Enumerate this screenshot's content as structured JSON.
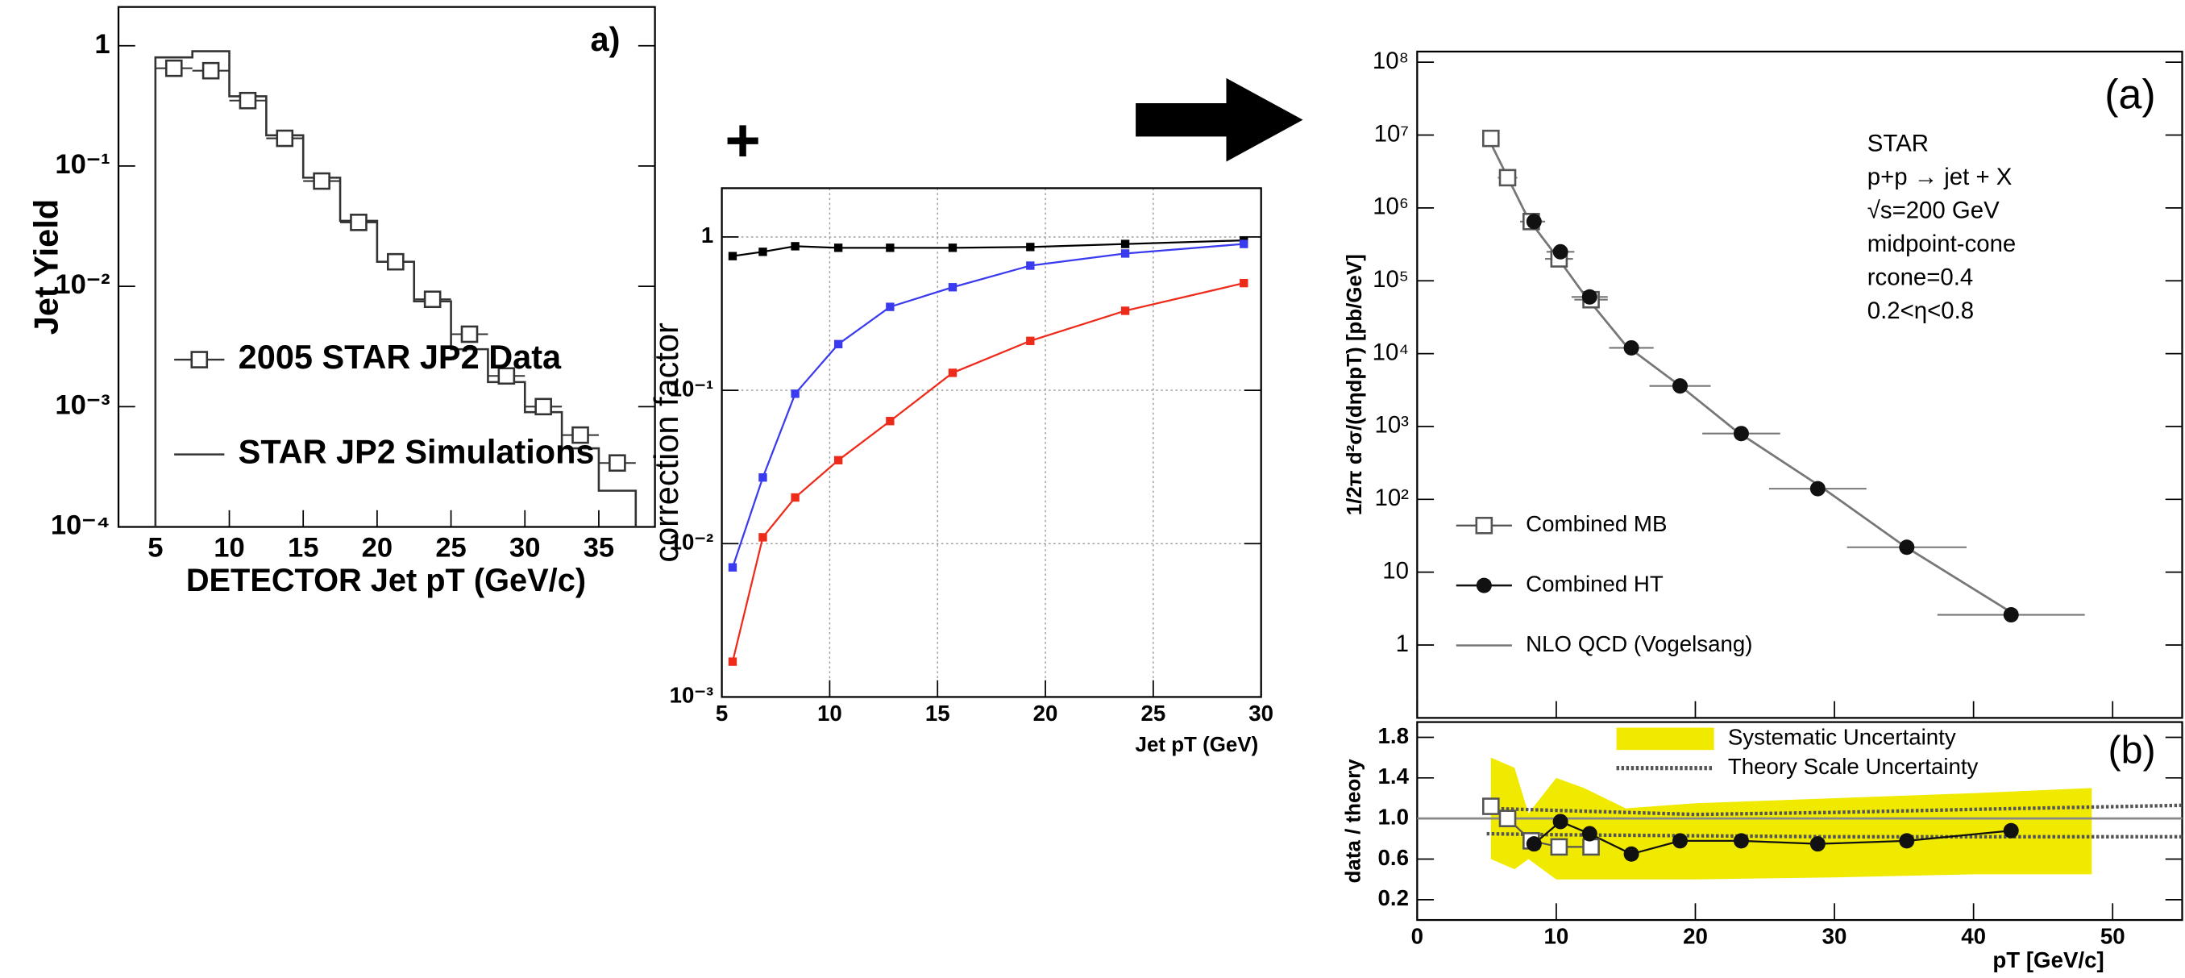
{
  "chart_data": [
    {
      "type": "histogram",
      "title": "a)",
      "xlabel": "DETECTOR Jet pT (GeV/c)",
      "ylabel": "Jet Yield",
      "log_y": true,
      "bins": [
        5,
        7.5,
        10,
        12.5,
        15,
        17.5,
        20,
        22.5,
        25,
        27.5,
        30,
        32.5,
        35,
        37.5
      ],
      "xlim": [
        2.5,
        38.8
      ],
      "xticks": [
        5,
        10,
        15,
        20,
        25,
        30,
        35
      ],
      "ylim": [
        0.0001,
        2.1
      ],
      "yticks": [
        {
          "value": 0.0001,
          "label": "10⁻⁴"
        },
        {
          "value": 0.001,
          "label": "10⁻³"
        },
        {
          "value": 0.01,
          "label": "10⁻²"
        },
        {
          "value": 0.1,
          "label": "10⁻¹"
        },
        1
      ],
      "legend": "lower left",
      "series": [
        {
          "name": "2005 STAR JP2 Data",
          "color": "#333333",
          "marker": "square-open",
          "values": [
            0.65,
            0.62,
            0.35,
            0.17,
            0.075,
            0.034,
            0.016,
            0.0078,
            0.004,
            0.0018,
            0.001,
            0.00058,
            0.00034
          ]
        },
        {
          "name": "STAR JP2 Simulations",
          "color": "#333333",
          "values": [
            0.8,
            0.9,
            0.38,
            0.18,
            0.08,
            0.035,
            0.016,
            0.0075,
            0.003,
            0.0016,
            0.0009,
            0.00045,
            0.0002
          ]
        }
      ]
    },
    {
      "type": "line",
      "annotation": "+",
      "xlabel": "Jet pT (GeV)",
      "ylabel": "correction factor",
      "log_y": true,
      "grid": true,
      "x": [
        5.5,
        6.9,
        8.4,
        10.4,
        12.8,
        15.7,
        19.3,
        23.7,
        29.2
      ],
      "xlim": [
        5,
        30
      ],
      "xticks": [
        5,
        10,
        15,
        20,
        25,
        30
      ],
      "ylim": [
        0.001,
        2.08
      ],
      "yticks": [
        {
          "value": 0.001,
          "label": "10⁻³"
        },
        {
          "value": 0.01,
          "label": "10⁻²"
        },
        {
          "value": 0.1,
          "label": "10⁻¹"
        },
        1
      ],
      "series": [
        {
          "color": "#000000",
          "marker": "square",
          "values": [
            0.75,
            0.8,
            0.87,
            0.85,
            0.85,
            0.85,
            0.86,
            0.9,
            0.95
          ]
        },
        {
          "color": "#3a3aee",
          "marker": "square",
          "values": [
            0.007,
            0.027,
            0.095,
            0.2,
            0.35,
            0.47,
            0.65,
            0.78,
            0.9
          ]
        },
        {
          "color": "#ee2a1a",
          "marker": "square",
          "values": [
            0.0017,
            0.011,
            0.02,
            0.035,
            0.063,
            0.13,
            0.21,
            0.33,
            0.5
          ]
        }
      ]
    },
    {
      "type": "scatter",
      "title": "(a)",
      "ylabel": "1/2π d²σ/(dηdpT) [pb/GeV]",
      "log_y": true,
      "annotations": [
        "STAR",
        "p+p → jet + X",
        "√s=200  GeV",
        "midpoint-cone",
        "rcone=0.4",
        "0.2<η<0.8"
      ],
      "xlim": [
        0,
        55
      ],
      "xticks": [
        0,
        10,
        20,
        30,
        40,
        50
      ],
      "xtick_labels": false,
      "ylim": [
        0.1,
        140000000
      ],
      "yticks": [
        1,
        10,
        {
          "value": 100,
          "label": "10²"
        },
        {
          "value": 1000,
          "label": "10³"
        },
        {
          "value": 10000,
          "label": "10⁴"
        },
        {
          "value": 100000,
          "label": "10⁵"
        },
        {
          "value": 1000000,
          "label": "10⁶"
        },
        {
          "value": 10000000,
          "label": "10⁷"
        },
        {
          "value": 100000000,
          "label": "10⁸"
        }
      ],
      "legend": "lower left",
      "series": [
        {
          "name": "Combined MB",
          "color": "#555555",
          "marker": "square-open",
          "x": [
            5.3,
            6.5,
            8.2,
            10.2,
            12.5
          ],
          "values": [
            9000000,
            2600000,
            650000,
            200000,
            55000
          ],
          "xerr": [
            0.5,
            0.7,
            0.8,
            1,
            1.2
          ]
        },
        {
          "name": "Combined HT",
          "color": "#111111",
          "marker": "circle",
          "x": [
            8.4,
            10.3,
            12.4,
            15.4,
            18.9,
            23.3,
            28.8,
            35.2,
            42.7
          ],
          "values": [
            650000,
            250000,
            60000,
            12000,
            3600,
            800,
            140,
            22,
            2.6
          ],
          "xerr": [
            0.8,
            1,
            1.3,
            1.6,
            2.2,
            2.8,
            3.5,
            4.3,
            5.3
          ]
        },
        {
          "name": "NLO QCD (Vogelsang)",
          "color": "#777777",
          "x": [
            5,
            8,
            10,
            12,
            15,
            19,
            23,
            29,
            35,
            43
          ],
          "values": [
            10000000,
            700000,
            220000,
            65000,
            13000,
            3500,
            850,
            150,
            23,
            2.6
          ]
        }
      ]
    },
    {
      "type": "line",
      "title": "(b)",
      "xlabel": "pT   [GeV/c]",
      "ylabel": "data / theory",
      "xlim": [
        0,
        55
      ],
      "xticks": [
        0,
        10,
        20,
        30,
        40,
        50
      ],
      "ylim": [
        0,
        1.95
      ],
      "yticks": [
        0.2,
        0.6,
        {
          "value": 1,
          "label": "1.0"
        },
        1.4,
        1.8
      ],
      "legend": "upper center",
      "series": [
        {
          "name": "Systematic Uncertainty",
          "color": "#f0ea00",
          "kind": "band",
          "x": [
            5.3,
            7,
            8,
            10,
            12,
            15,
            20,
            30,
            40,
            48.5
          ],
          "values": [
            1.6,
            1.5,
            1.05,
            1.4,
            1.3,
            1.1,
            1.15,
            1.2,
            1.25,
            1.3
          ],
          "lower": [
            0.6,
            0.5,
            0.6,
            0.4,
            0.4,
            0.4,
            0.4,
            0.42,
            0.45,
            0.45
          ]
        },
        {
          "name": "Theory Scale Uncertainty",
          "color": "#555555",
          "kind": "bounds",
          "x": [
            5,
            10,
            20,
            30,
            40,
            55
          ],
          "values": [
            1.1,
            1.08,
            1.04,
            1.06,
            1.09,
            1.13
          ],
          "lower": [
            0.85,
            0.84,
            0.83,
            0.82,
            0.82,
            0.82
          ]
        },
        {
          "color": "#888888",
          "x": [
            0,
            55
          ],
          "values": [
            1,
            1
          ]
        },
        {
          "color": "#555555",
          "marker": "square-open",
          "x": [
            5.3,
            6.5,
            8.2,
            10.2,
            12.5
          ],
          "values": [
            1.12,
            1,
            0.78,
            0.72,
            0.72
          ]
        },
        {
          "color": "#111111",
          "marker": "circle",
          "x": [
            8.4,
            10.3,
            12.4,
            15.4,
            18.9,
            23.3,
            28.8,
            35.2,
            42.7
          ],
          "values": [
            0.75,
            0.97,
            0.85,
            0.65,
            0.78,
            0.78,
            0.75,
            0.78,
            0.88
          ]
        }
      ]
    }
  ]
}
